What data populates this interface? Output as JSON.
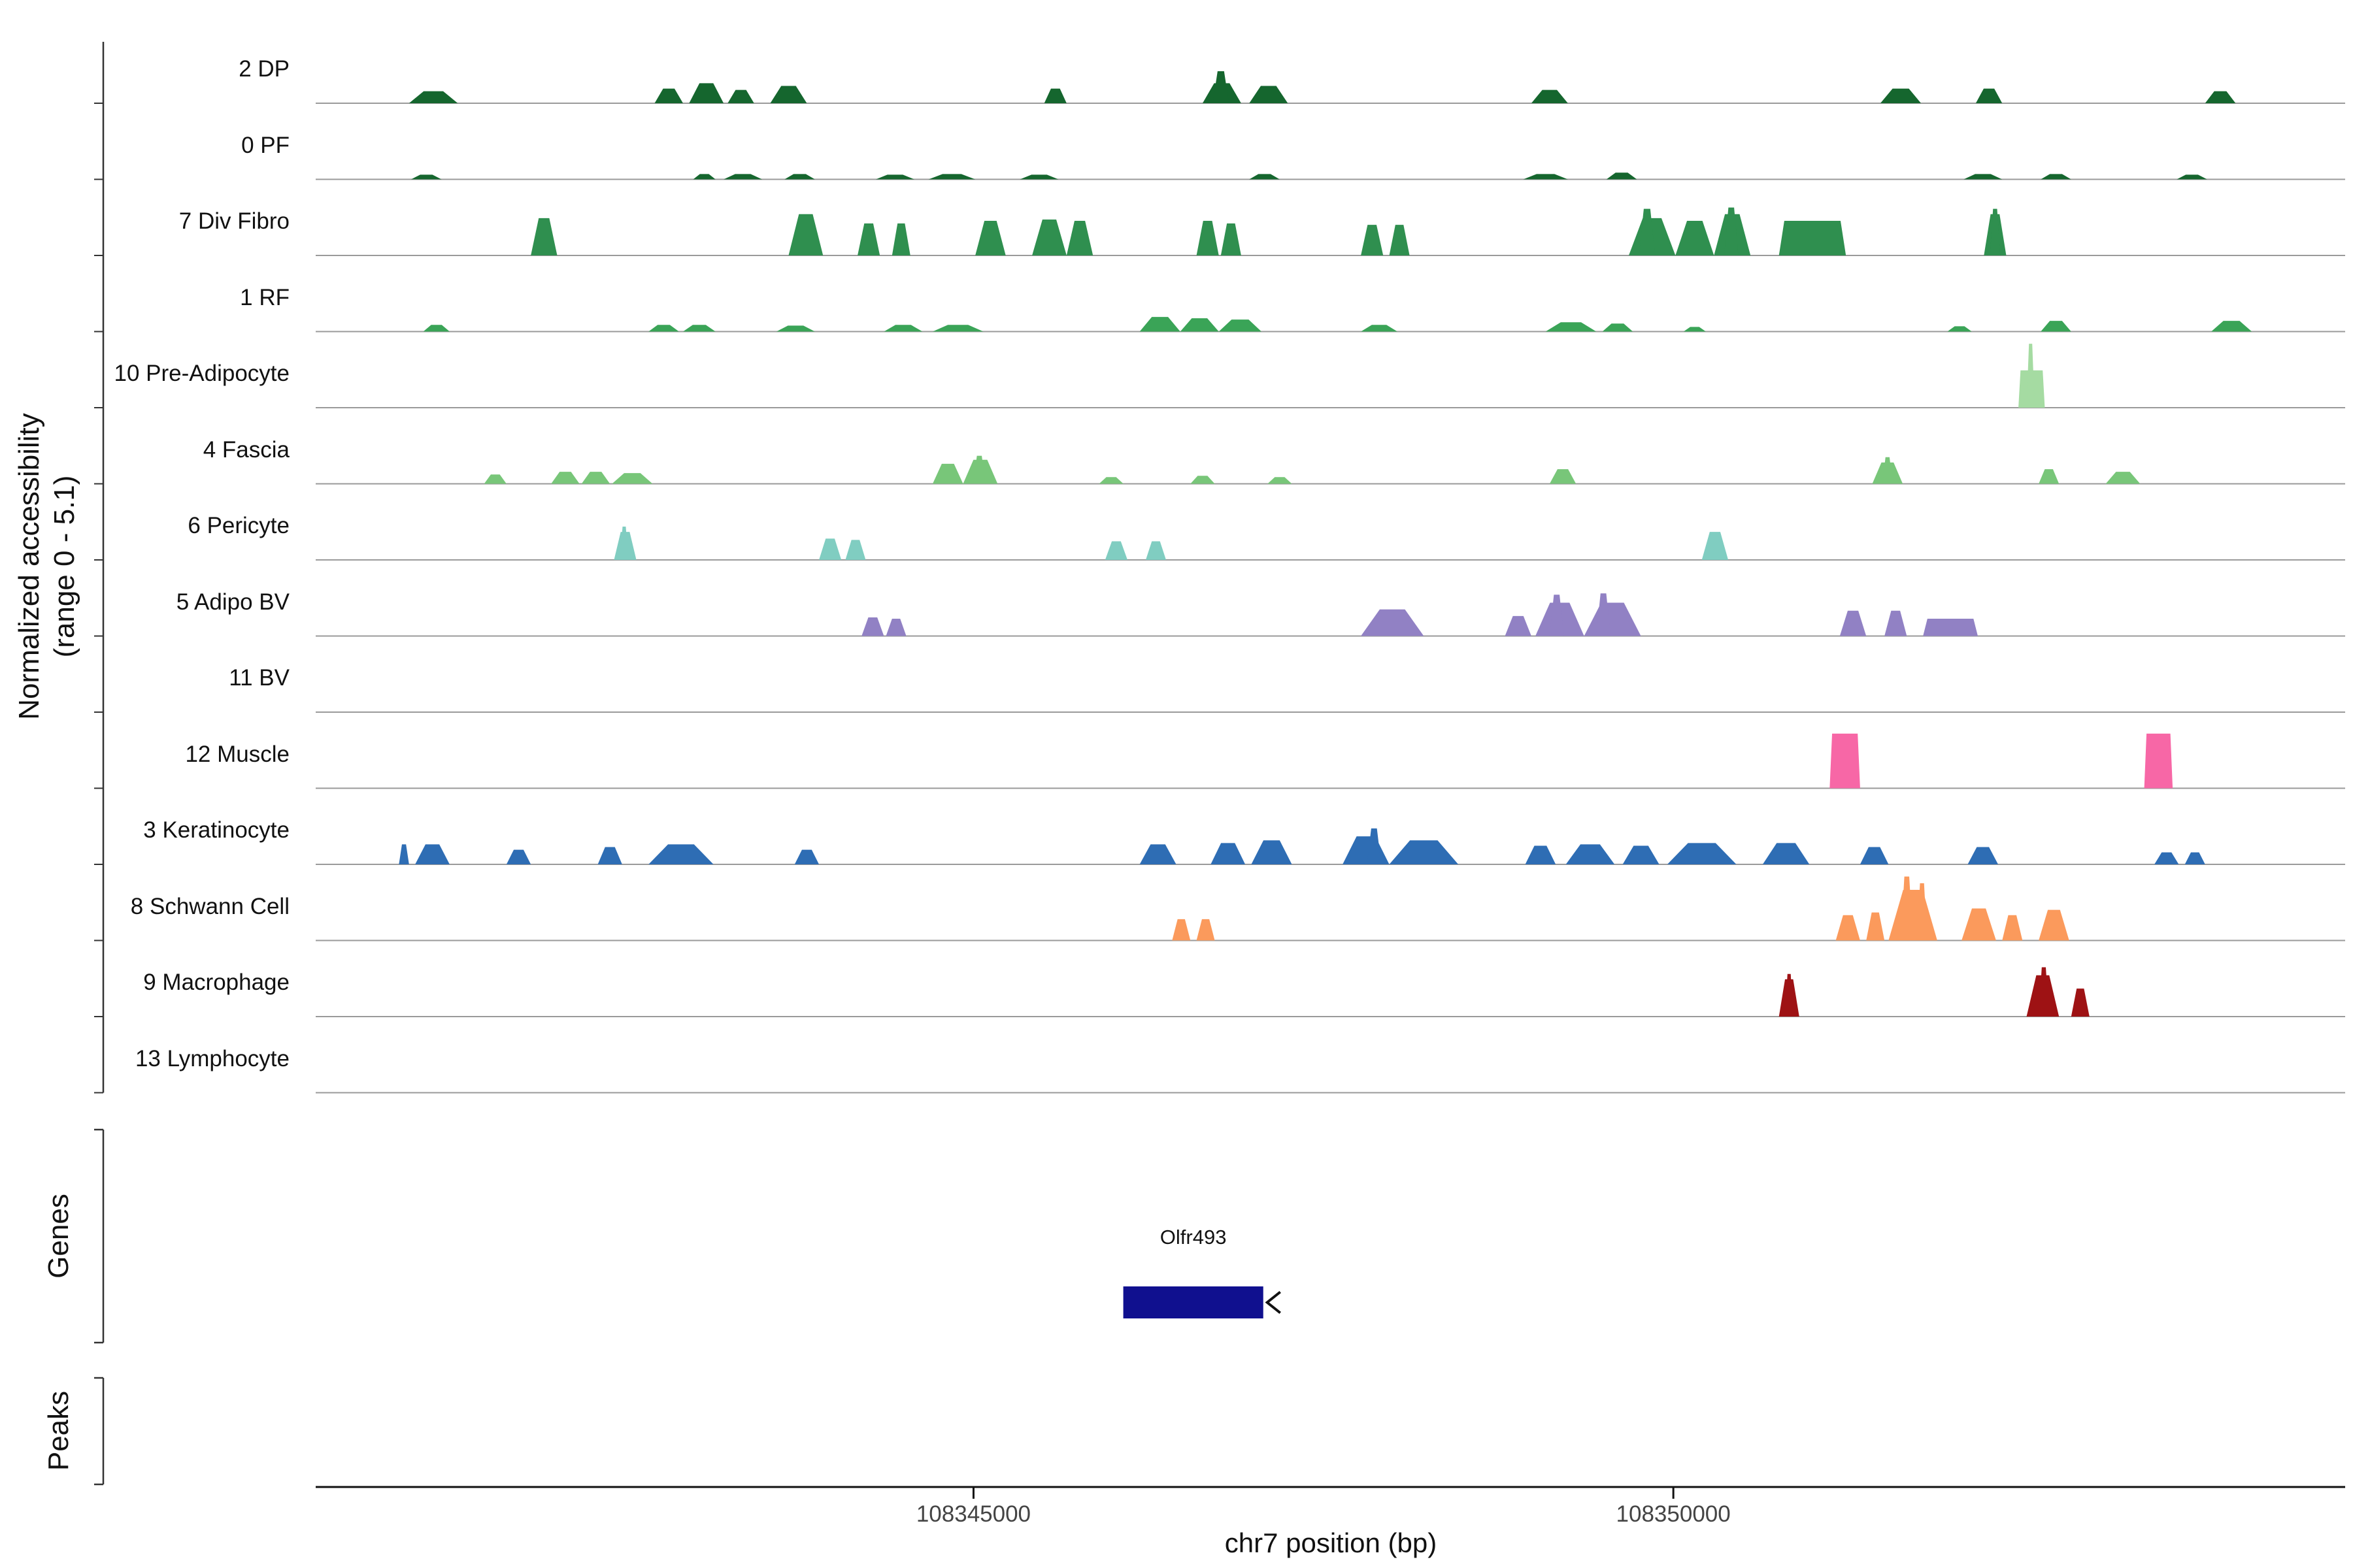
{
  "chart_data": {
    "type": "area",
    "description": "Genome-browser style chromatin accessibility coverage tracks per cell-type cluster",
    "x_range": [
      108340300,
      108354800
    ],
    "y_max": 5.1,
    "y_axis": {
      "label_line1": "Normalized accessibility",
      "label_line2": "(range 0 - 5.1)"
    },
    "x_axis": {
      "title": "chr7 position (bp)",
      "ticks": [
        {
          "value": 108345000,
          "label": "108345000"
        },
        {
          "value": 108350000,
          "label": "108350000"
        }
      ]
    },
    "sections": {
      "genes_label": "Genes",
      "peaks_label": "Peaks"
    },
    "gene": {
      "name": "Olfr493",
      "start": 108346070,
      "end": 108347070,
      "strand": "minus",
      "color": "#10108f"
    },
    "tracks": [
      {
        "label": "2 DP",
        "color": "#15662e",
        "peaks": [
          [
            0.046,
            0.07,
            0.9
          ],
          [
            0.167,
            0.181,
            1.1
          ],
          [
            0.184,
            0.201,
            1.5
          ],
          [
            0.203,
            0.216,
            1.0
          ],
          [
            0.224,
            0.242,
            1.3
          ],
          [
            0.359,
            0.37,
            1.1
          ],
          [
            0.437,
            0.456,
            1.5
          ],
          [
            0.442,
            0.45,
            2.4
          ],
          [
            0.46,
            0.479,
            1.3
          ],
          [
            0.599,
            0.617,
            1.0
          ],
          [
            0.771,
            0.791,
            1.1
          ],
          [
            0.818,
            0.831,
            1.1
          ],
          [
            0.931,
            0.946,
            0.9
          ]
        ]
      },
      {
        "label": "0 PF",
        "color": "#15662e",
        "peaks": [
          [
            0.047,
            0.062,
            0.35
          ],
          [
            0.186,
            0.197,
            0.4
          ],
          [
            0.201,
            0.22,
            0.4
          ],
          [
            0.231,
            0.246,
            0.4
          ],
          [
            0.276,
            0.295,
            0.35
          ],
          [
            0.302,
            0.325,
            0.4
          ],
          [
            0.347,
            0.366,
            0.35
          ],
          [
            0.46,
            0.475,
            0.4
          ],
          [
            0.595,
            0.617,
            0.4
          ],
          [
            0.636,
            0.651,
            0.5
          ],
          [
            0.812,
            0.831,
            0.4
          ],
          [
            0.85,
            0.865,
            0.4
          ],
          [
            0.917,
            0.932,
            0.35
          ]
        ]
      },
      {
        "label": "7 Div Fibro",
        "color": "#2f8f4f",
        "peaks": [
          [
            0.106,
            0.119,
            2.8
          ],
          [
            0.233,
            0.25,
            3.1
          ],
          [
            0.267,
            0.278,
            2.4
          ],
          [
            0.284,
            0.293,
            2.4
          ],
          [
            0.325,
            0.34,
            2.6
          ],
          [
            0.353,
            0.37,
            2.7
          ],
          [
            0.37,
            0.383,
            2.6
          ],
          [
            0.434,
            0.445,
            2.6
          ],
          [
            0.446,
            0.456,
            2.4
          ],
          [
            0.515,
            0.526,
            2.3
          ],
          [
            0.529,
            0.539,
            2.3
          ],
          [
            0.647,
            0.67,
            2.8
          ],
          [
            0.652,
            0.66,
            3.5
          ],
          [
            0.67,
            0.689,
            2.6
          ],
          [
            0.689,
            0.707,
            3.1
          ],
          [
            0.694,
            0.701,
            3.6
          ],
          [
            0.721,
            0.754,
            2.6,
            1
          ],
          [
            0.822,
            0.833,
            3.1
          ],
          [
            0.825,
            0.83,
            3.5
          ]
        ]
      },
      {
        "label": "1 RF",
        "color": "#3aa457",
        "peaks": [
          [
            0.053,
            0.066,
            0.5
          ],
          [
            0.164,
            0.179,
            0.5
          ],
          [
            0.181,
            0.197,
            0.5
          ],
          [
            0.227,
            0.246,
            0.45
          ],
          [
            0.28,
            0.299,
            0.5
          ],
          [
            0.304,
            0.329,
            0.5
          ],
          [
            0.406,
            0.426,
            1.1
          ],
          [
            0.426,
            0.445,
            1.0
          ],
          [
            0.445,
            0.466,
            0.9
          ],
          [
            0.515,
            0.533,
            0.5
          ],
          [
            0.606,
            0.631,
            0.7
          ],
          [
            0.634,
            0.649,
            0.6
          ],
          [
            0.674,
            0.685,
            0.35
          ],
          [
            0.804,
            0.816,
            0.4
          ],
          [
            0.85,
            0.865,
            0.8
          ],
          [
            0.934,
            0.954,
            0.8
          ]
        ]
      },
      {
        "label": "10 Pre-Adipocyte",
        "color": "#a5dba2",
        "peaks": [
          [
            0.839,
            0.852,
            2.8,
            1
          ],
          [
            0.843,
            0.847,
            4.8
          ]
        ]
      },
      {
        "label": "4 Fascia",
        "color": "#78c679",
        "peaks": [
          [
            0.083,
            0.094,
            0.7
          ],
          [
            0.116,
            0.13,
            0.9
          ],
          [
            0.131,
            0.145,
            0.9
          ],
          [
            0.146,
            0.166,
            0.8
          ],
          [
            0.304,
            0.319,
            1.5
          ],
          [
            0.319,
            0.336,
            1.8
          ],
          [
            0.324,
            0.33,
            2.1
          ],
          [
            0.386,
            0.398,
            0.5
          ],
          [
            0.431,
            0.443,
            0.6
          ],
          [
            0.469,
            0.481,
            0.5
          ],
          [
            0.608,
            0.621,
            1.1
          ],
          [
            0.767,
            0.782,
            1.6
          ],
          [
            0.772,
            0.777,
            2.0
          ],
          [
            0.849,
            0.859,
            1.1
          ],
          [
            0.882,
            0.899,
            0.9
          ]
        ]
      },
      {
        "label": "6 Pericyte",
        "color": "#80cdc1",
        "peaks": [
          [
            0.147,
            0.158,
            2.1
          ],
          [
            0.15,
            0.154,
            2.5
          ],
          [
            0.248,
            0.259,
            1.6
          ],
          [
            0.261,
            0.271,
            1.5
          ],
          [
            0.389,
            0.4,
            1.4
          ],
          [
            0.409,
            0.419,
            1.4
          ],
          [
            0.683,
            0.696,
            2.1
          ]
        ]
      },
      {
        "label": "5 Adipo BV",
        "color": "#9181c4",
        "peaks": [
          [
            0.269,
            0.28,
            1.4
          ],
          [
            0.281,
            0.291,
            1.3
          ],
          [
            0.515,
            0.546,
            2.0
          ],
          [
            0.586,
            0.599,
            1.5
          ],
          [
            0.601,
            0.625,
            2.5
          ],
          [
            0.608,
            0.615,
            3.1
          ],
          [
            0.625,
            0.653,
            2.5
          ],
          [
            0.631,
            0.638,
            3.2
          ],
          [
            0.751,
            0.764,
            1.9
          ],
          [
            0.773,
            0.784,
            1.9
          ],
          [
            0.792,
            0.819,
            1.3,
            1
          ]
        ]
      },
      {
        "label": "11 BV",
        "color": "#b8b8b8",
        "peaks": []
      },
      {
        "label": "12 Muscle",
        "color": "#f767a6",
        "peaks": [
          [
            0.746,
            0.761,
            4.1,
            1
          ],
          [
            0.901,
            0.915,
            4.1,
            1
          ]
        ]
      },
      {
        "label": "3 Keratinocyte",
        "color": "#2e6db4",
        "peaks": [
          [
            0.041,
            0.046,
            1.5
          ],
          [
            0.049,
            0.066,
            1.5
          ],
          [
            0.094,
            0.106,
            1.1
          ],
          [
            0.139,
            0.151,
            1.3
          ],
          [
            0.164,
            0.196,
            1.5
          ],
          [
            0.236,
            0.248,
            1.1
          ],
          [
            0.406,
            0.424,
            1.5
          ],
          [
            0.441,
            0.458,
            1.6
          ],
          [
            0.461,
            0.481,
            1.8
          ],
          [
            0.506,
            0.529,
            2.1
          ],
          [
            0.518,
            0.525,
            2.7
          ],
          [
            0.529,
            0.563,
            1.8
          ],
          [
            0.596,
            0.611,
            1.4
          ],
          [
            0.616,
            0.64,
            1.5
          ],
          [
            0.644,
            0.662,
            1.4
          ],
          [
            0.666,
            0.7,
            1.6
          ],
          [
            0.713,
            0.736,
            1.6
          ],
          [
            0.761,
            0.775,
            1.3
          ],
          [
            0.814,
            0.829,
            1.3
          ],
          [
            0.906,
            0.918,
            0.9
          ],
          [
            0.921,
            0.931,
            0.9
          ]
        ]
      },
      {
        "label": "8 Schwann Cell",
        "color": "#fb9a5c",
        "peaks": [
          [
            0.422,
            0.431,
            1.6
          ],
          [
            0.434,
            0.443,
            1.6
          ],
          [
            0.749,
            0.761,
            1.9
          ],
          [
            0.764,
            0.773,
            2.1
          ],
          [
            0.775,
            0.799,
            3.8
          ],
          [
            0.781,
            0.787,
            4.8
          ],
          [
            0.789,
            0.794,
            4.3
          ],
          [
            0.811,
            0.828,
            2.4
          ],
          [
            0.831,
            0.841,
            1.9
          ],
          [
            0.849,
            0.864,
            2.3
          ]
        ]
      },
      {
        "label": "9 Macrophage",
        "color": "#9e1214",
        "peaks": [
          [
            0.721,
            0.731,
            2.8
          ],
          [
            0.724,
            0.728,
            3.2
          ],
          [
            0.843,
            0.859,
            3.1
          ],
          [
            0.849,
            0.854,
            3.7
          ],
          [
            0.865,
            0.874,
            2.1
          ]
        ]
      },
      {
        "label": "13 Lymphocyte",
        "color": "#cccccc",
        "peaks": []
      }
    ]
  }
}
